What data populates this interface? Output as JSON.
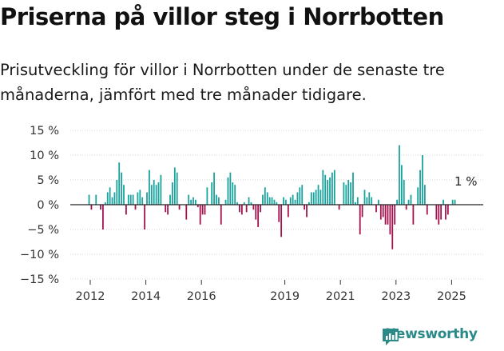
{
  "title": "Priserna på villor steg i Norrbotten",
  "subtitle": "Prisutveckling för villor i Norrbotten under de senaste tre månaderna, jämfört med tre månader tidigare.",
  "brand": "Newsworthy",
  "last_label": "1 %",
  "colors": {
    "positive": "#1aa39d",
    "negative": "#a3124e",
    "brand": "#2a8a87"
  },
  "chart_data": {
    "type": "bar",
    "title": "Priserna på villor steg i Norrbotten",
    "xlabel": "",
    "ylabel": "",
    "ylim": [
      -15,
      15
    ],
    "yticks": [
      15,
      10,
      5,
      0,
      -5,
      -10,
      -15
    ],
    "ytick_labels": [
      "15 %",
      "10 %",
      "5 %",
      "0 %",
      "−5 %",
      "−10 %",
      "−15 %"
    ],
    "xticks": [
      2012,
      2014,
      2016,
      2019,
      2021,
      2023,
      2025
    ],
    "xtick_labels": [
      "2012",
      "2014",
      "2016",
      "2019",
      "2021",
      "2023",
      "2025"
    ],
    "x_start": 2011.958,
    "x_step": 0.0833,
    "unit": "%",
    "last_value_label": "1 %",
    "values": [
      2.0,
      -1.0,
      0,
      2.0,
      0,
      -1.0,
      -5.0,
      0.5,
      2.5,
      3.5,
      1.5,
      2.5,
      5.0,
      8.5,
      6.5,
      4.0,
      -2.0,
      2.0,
      2.0,
      2.0,
      -1.0,
      2.5,
      3.0,
      1.5,
      -5.0,
      2.5,
      7.0,
      4.0,
      5.0,
      4.0,
      4.5,
      6.0,
      0,
      -1.5,
      -2.0,
      2.0,
      4.5,
      7.5,
      6.5,
      -1.0,
      0,
      0,
      -3.0,
      2.0,
      1.0,
      1.5,
      1.0,
      -0.5,
      -4.0,
      -2.0,
      -2.0,
      3.5,
      0,
      4.5,
      6.5,
      2.0,
      1.5,
      -4.0,
      0,
      1.0,
      5.5,
      6.5,
      4.5,
      4.0,
      0.5,
      -1.5,
      -2.0,
      0.5,
      -1.5,
      1.5,
      0.5,
      -1.0,
      -3.0,
      -4.5,
      -1.5,
      2.0,
      3.5,
      2.5,
      1.5,
      1.5,
      1.0,
      0.5,
      -3.5,
      -6.5,
      1.5,
      1.0,
      -2.5,
      1.5,
      2.0,
      1.0,
      2.5,
      3.5,
      4.0,
      -1.0,
      -2.5,
      0.5,
      2.5,
      2.5,
      3.0,
      4.0,
      3.0,
      7.0,
      6.0,
      5.0,
      5.5,
      6.5,
      7.0,
      0,
      -1.0,
      0,
      4.5,
      4.0,
      5.0,
      4.5,
      6.5,
      0.5,
      1.5,
      -6.0,
      -2.5,
      3.0,
      1.5,
      2.5,
      1.5,
      0,
      -1.5,
      1.0,
      -3.0,
      -2.5,
      -4.0,
      -4.0,
      -6.0,
      -9.0,
      -4.0,
      1.0,
      12.0,
      8.0,
      5.0,
      -1.0,
      1.0,
      2.0,
      -4.0,
      0,
      3.5,
      7.0,
      10.0,
      4.0,
      -2.0,
      0,
      0,
      0,
      -3.0,
      -4.0,
      -3.0,
      1.0,
      -3.0,
      -2.0,
      0,
      1.0,
      1.0
    ]
  }
}
